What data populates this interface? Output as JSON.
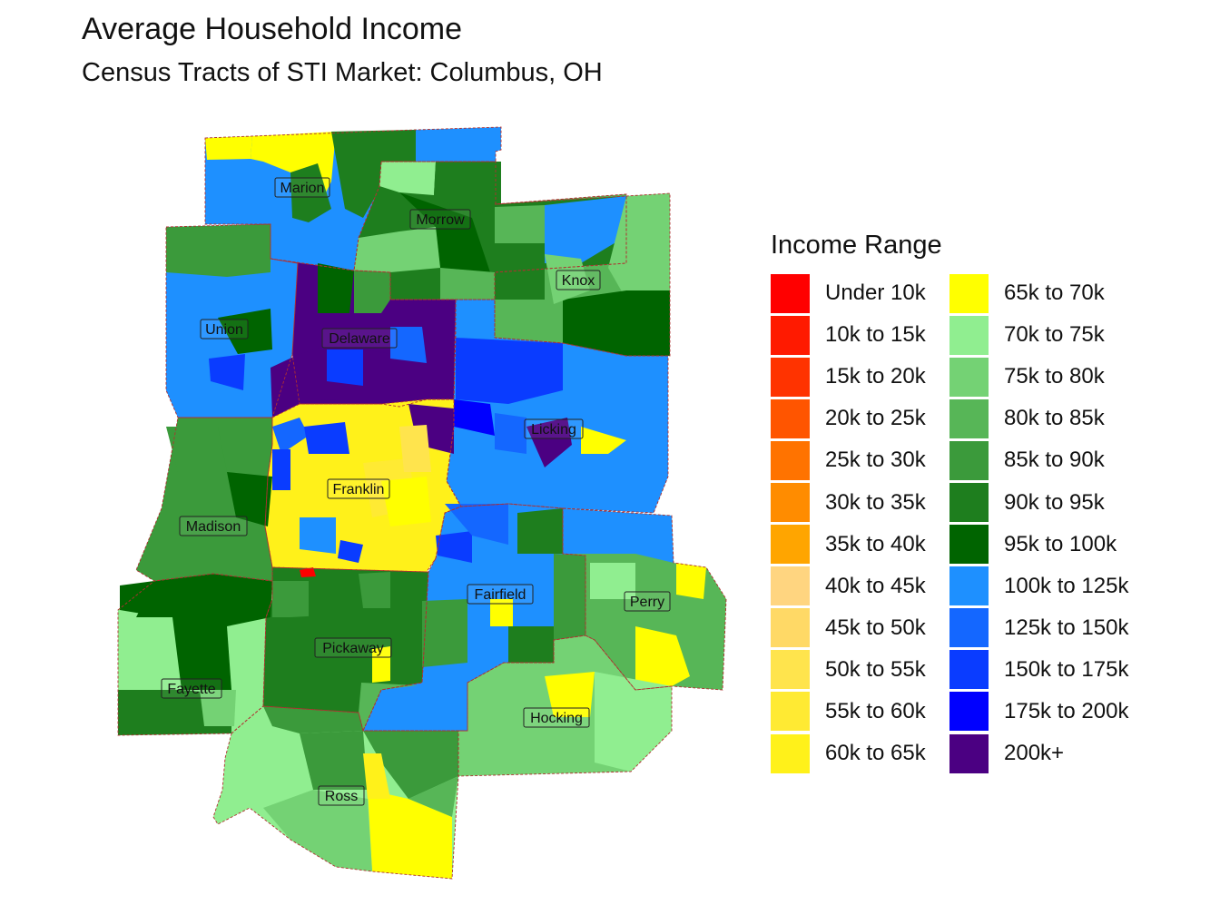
{
  "title": "Average Household Income",
  "subtitle": "Census Tracts of STI Market: Columbus, OH",
  "legend": {
    "title": "Income Range",
    "items": [
      {
        "label": "Under 10k",
        "color": "#FF0000"
      },
      {
        "label": "10k to 15k",
        "color": "#FF1A00"
      },
      {
        "label": "15k to 20k",
        "color": "#FF3300"
      },
      {
        "label": "20k to 25k",
        "color": "#FF5500"
      },
      {
        "label": "25k to 30k",
        "color": "#FF7300"
      },
      {
        "label": "30k to 35k",
        "color": "#FF8C00"
      },
      {
        "label": "35k to 40k",
        "color": "#FFA500"
      },
      {
        "label": "40k to 45k",
        "color": "#FFD580"
      },
      {
        "label": "45k to 50k",
        "color": "#FFD966"
      },
      {
        "label": "50k to 55k",
        "color": "#FFE44D"
      },
      {
        "label": "55k to 60k",
        "color": "#FFEA33"
      },
      {
        "label": "60k to 65k",
        "color": "#FFF11A"
      },
      {
        "label": "65k to 70k",
        "color": "#FFFF00"
      },
      {
        "label": "70k to 75k",
        "color": "#90EE90"
      },
      {
        "label": "75k to 80k",
        "color": "#74D274"
      },
      {
        "label": "80k to 85k",
        "color": "#57B657"
      },
      {
        "label": "85k to 90k",
        "color": "#3B9A3B"
      },
      {
        "label": "90k to 95k",
        "color": "#1E7E1E"
      },
      {
        "label": "95k to 100k",
        "color": "#006400"
      },
      {
        "label": "100k to 125k",
        "color": "#1E90FF"
      },
      {
        "label": "125k to 150k",
        "color": "#1467FF"
      },
      {
        "label": "150k to 175k",
        "color": "#0A3CFF"
      },
      {
        "label": "175k to 200k",
        "color": "#0000FF"
      },
      {
        "label": "200k+",
        "color": "#4B0082"
      }
    ]
  },
  "counties": [
    {
      "name": "Marion",
      "income_range": "100k to 125k"
    },
    {
      "name": "Morrow",
      "income_range": "90k to 95k"
    },
    {
      "name": "Knox",
      "income_range": "80k to 85k"
    },
    {
      "name": "Union",
      "income_range": "100k to 125k"
    },
    {
      "name": "Delaware",
      "income_range": "200k+"
    },
    {
      "name": "Licking",
      "income_range": "100k to 125k"
    },
    {
      "name": "Franklin",
      "income_range": "60k to 65k"
    },
    {
      "name": "Madison",
      "income_range": "85k to 90k"
    },
    {
      "name": "Fairfield",
      "income_range": "100k to 125k"
    },
    {
      "name": "Perry",
      "income_range": "80k to 85k"
    },
    {
      "name": "Pickaway",
      "income_range": "90k to 95k"
    },
    {
      "name": "Fayette",
      "income_range": "70k to 75k"
    },
    {
      "name": "Hocking",
      "income_range": "75k to 80k"
    },
    {
      "name": "Ross",
      "income_range": "70k to 75k"
    }
  ]
}
